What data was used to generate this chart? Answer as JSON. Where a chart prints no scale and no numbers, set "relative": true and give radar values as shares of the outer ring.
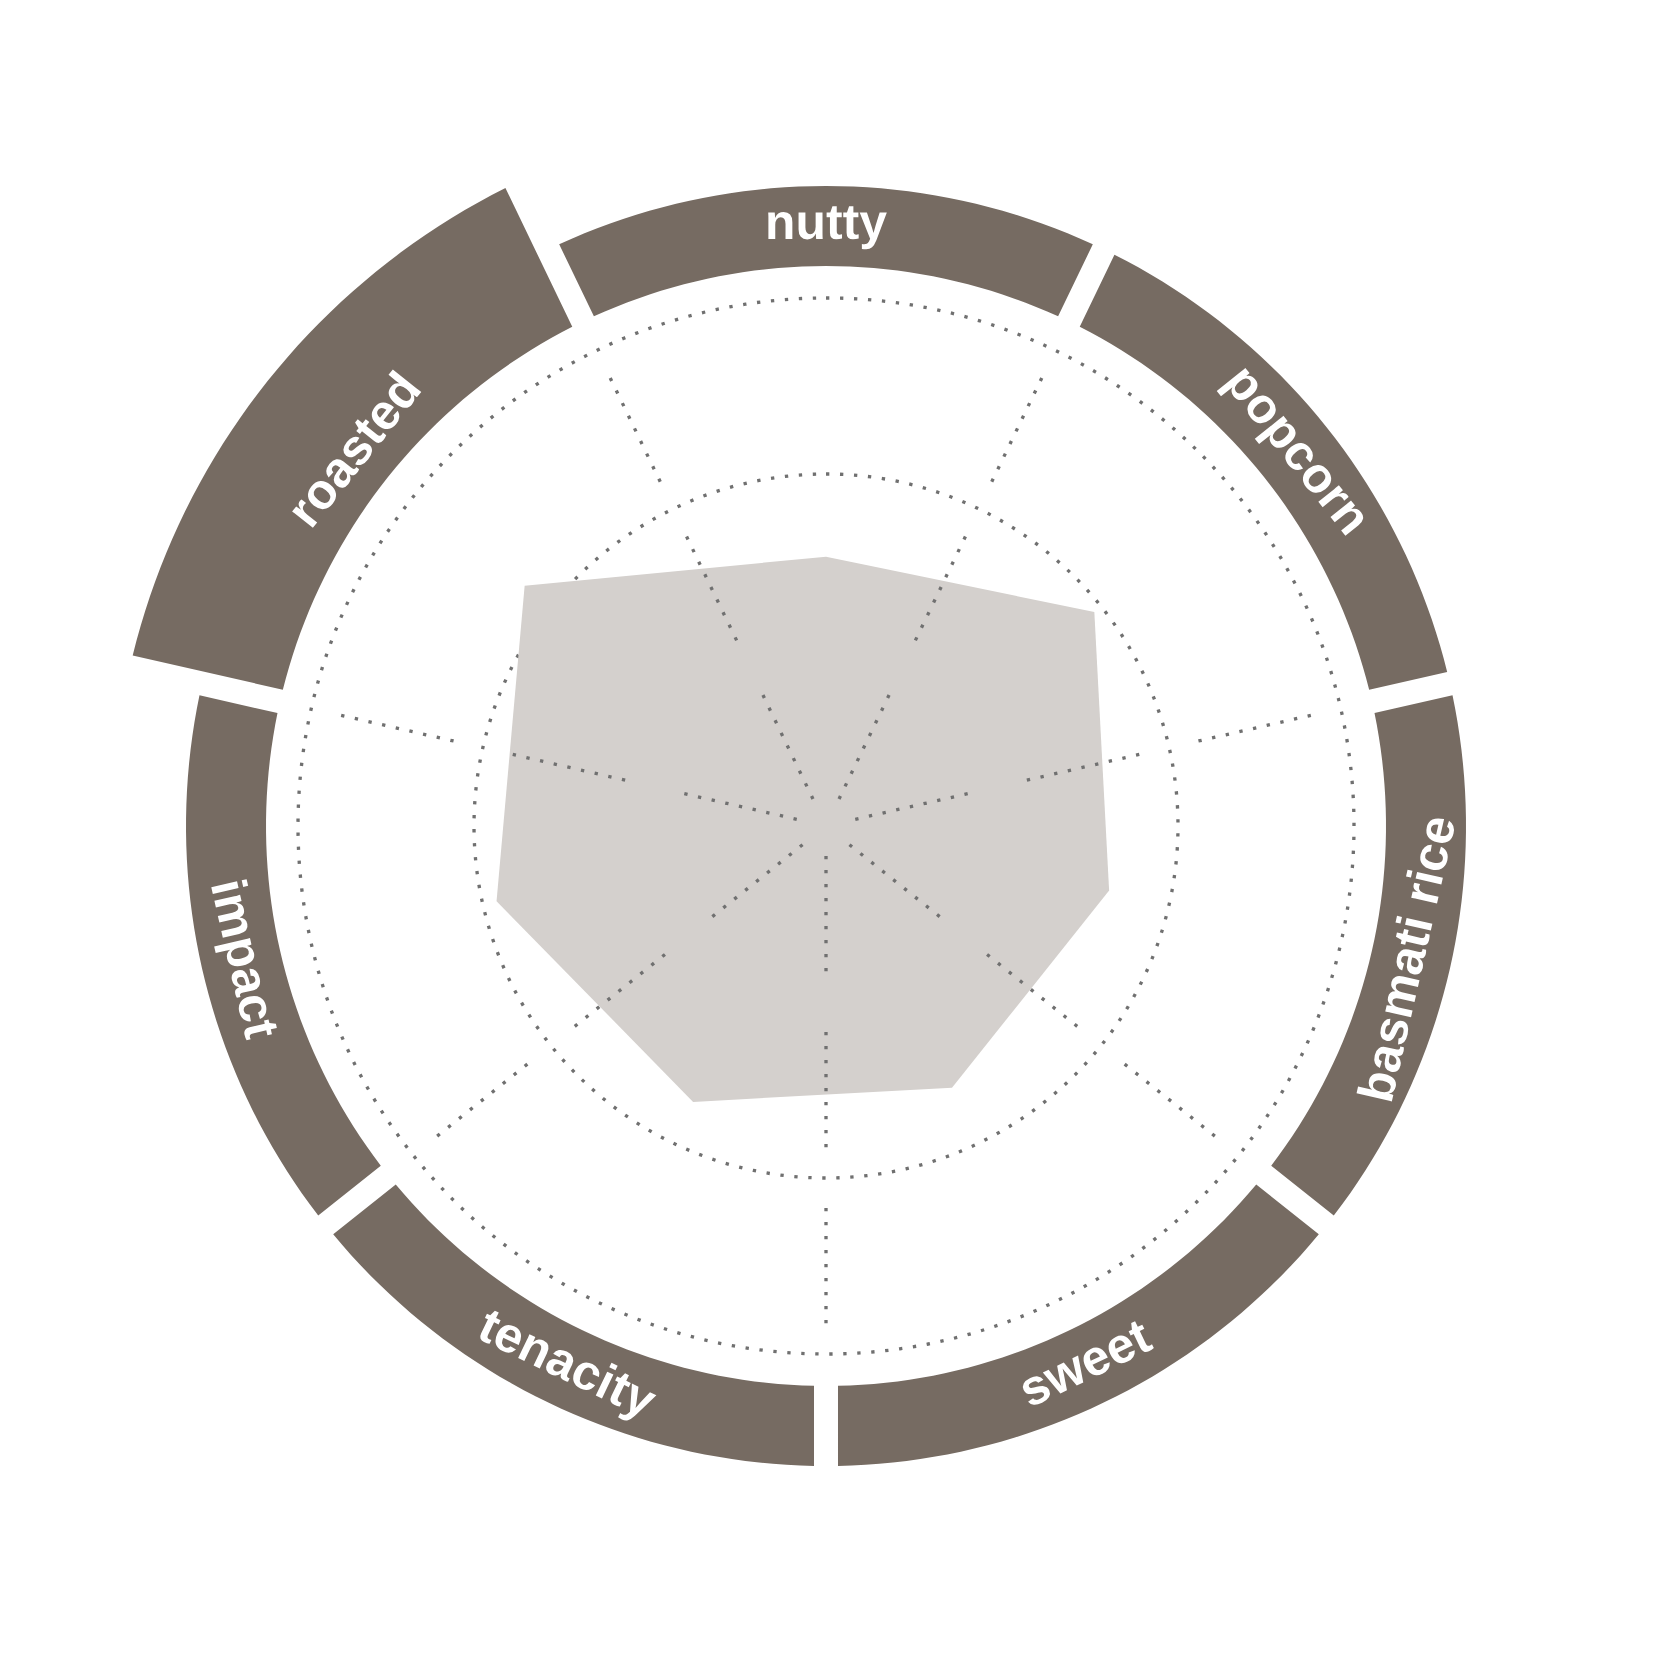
{
  "chart_data": {
    "type": "radar",
    "relative": true,
    "grid": true,
    "categories": [
      "nutty",
      "popcorn",
      "basmati rice",
      "sweet",
      "tenacity",
      "impact",
      "roasted"
    ],
    "series": [
      {
        "color": "#d4d0cd",
        "values": [
          0.51,
          0.65,
          0.55,
          0.55,
          0.58,
          0.64,
          0.73
        ]
      }
    ]
  }
}
